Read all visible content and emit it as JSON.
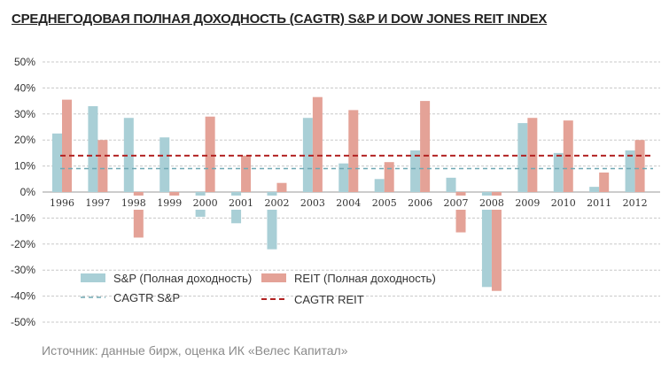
{
  "chart_data": {
    "type": "bar",
    "title": "СРЕДНЕГОДОВАЯ ПОЛНАЯ ДОХОДНОСТЬ (CAGTR) S&P И DOW JONES REIT INDEX",
    "categories": [
      "1996",
      "1997",
      "1998",
      "1999",
      "2000",
      "2001",
      "2002",
      "2003",
      "2004",
      "2005",
      "2006",
      "2007",
      "2008",
      "2009",
      "2010",
      "2011",
      "2012"
    ],
    "series": [
      {
        "name": "S&P (Полная доходность)",
        "color": "#a9cfd6",
        "values": [
          22.5,
          33,
          28.5,
          21,
          -9.5,
          -12,
          -22,
          28.5,
          11,
          5,
          16,
          5.5,
          -36.5,
          26.5,
          15,
          2,
          16
        ]
      },
      {
        "name": "REIT (Полная доходность)",
        "color": "#e4a297",
        "values": [
          35.5,
          20,
          -17.5,
          -5,
          29,
          14,
          3.5,
          36.5,
          31.5,
          11.5,
          35,
          -15.5,
          -38,
          28.5,
          27.5,
          7.5,
          20
        ]
      }
    ],
    "reference_lines": [
      {
        "name": "CAGTR S&P",
        "value": 9,
        "color": "#6fa8b3",
        "style": "dashed"
      },
      {
        "name": "CAGTR REIT",
        "value": 14,
        "color": "#b22222",
        "style": "dashed"
      }
    ],
    "ylim": [
      -50,
      50
    ],
    "yticks": [
      50,
      40,
      30,
      20,
      10,
      0,
      -10,
      -20,
      -30,
      -40,
      -50
    ],
    "ytick_labels": [
      "50%",
      "40%",
      "30%",
      "20%",
      "10%",
      "0%",
      "-10%",
      "-20%",
      "-30%",
      "-40%",
      "-50%"
    ],
    "xlabel": "",
    "ylabel": "",
    "grid": "horizontal dashed",
    "legend_position": "bottom-left, inside plot"
  },
  "source_note": "Источник:  данные бирж, оценка ИК «Велес Капитал»"
}
